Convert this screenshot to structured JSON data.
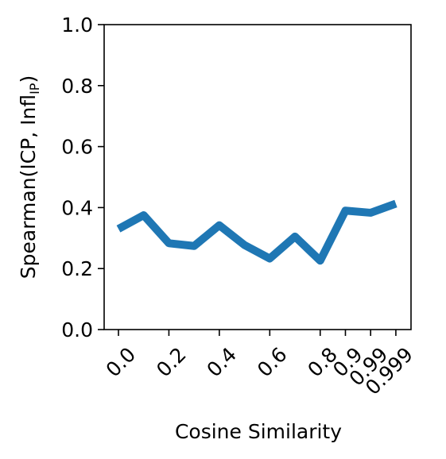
{
  "chart_data": {
    "type": "line",
    "title": "",
    "xlabel": "Cosine Similarity",
    "ylabel": "Spearman(ICP, Infl",
    "ylabel_subscript": "IP",
    "ylabel_close": ")",
    "x_tick_labels": [
      "0.0",
      "0.2",
      "0.4",
      "0.6",
      "0.8",
      "0.9",
      "0.99",
      "0.999"
    ],
    "x_tick_values": [
      0.0,
      0.2,
      0.4,
      0.6,
      0.8,
      0.9,
      0.99,
      0.999
    ],
    "y_tick_labels": [
      "0.0",
      "0.2",
      "0.4",
      "0.6",
      "0.8",
      "1.0"
    ],
    "y_tick_values": [
      0.0,
      0.2,
      0.4,
      0.6,
      0.8,
      1.0
    ],
    "ylim": [
      0.0,
      1.0
    ],
    "grid": false,
    "legend": "none",
    "series": [
      {
        "color": "#1f77b4",
        "points": [
          {
            "x": 0.0,
            "y": 0.33
          },
          {
            "x": 0.1,
            "y": 0.375
          },
          {
            "x": 0.2,
            "y": 0.283
          },
          {
            "x": 0.3,
            "y": 0.274
          },
          {
            "x": 0.4,
            "y": 0.342
          },
          {
            "x": 0.5,
            "y": 0.277
          },
          {
            "x": 0.6,
            "y": 0.233
          },
          {
            "x": 0.7,
            "y": 0.305
          },
          {
            "x": 0.8,
            "y": 0.226
          },
          {
            "x": 0.9,
            "y": 0.39
          },
          {
            "x": 0.99,
            "y": 0.383
          },
          {
            "x": 0.999,
            "y": 0.413
          }
        ]
      }
    ]
  }
}
